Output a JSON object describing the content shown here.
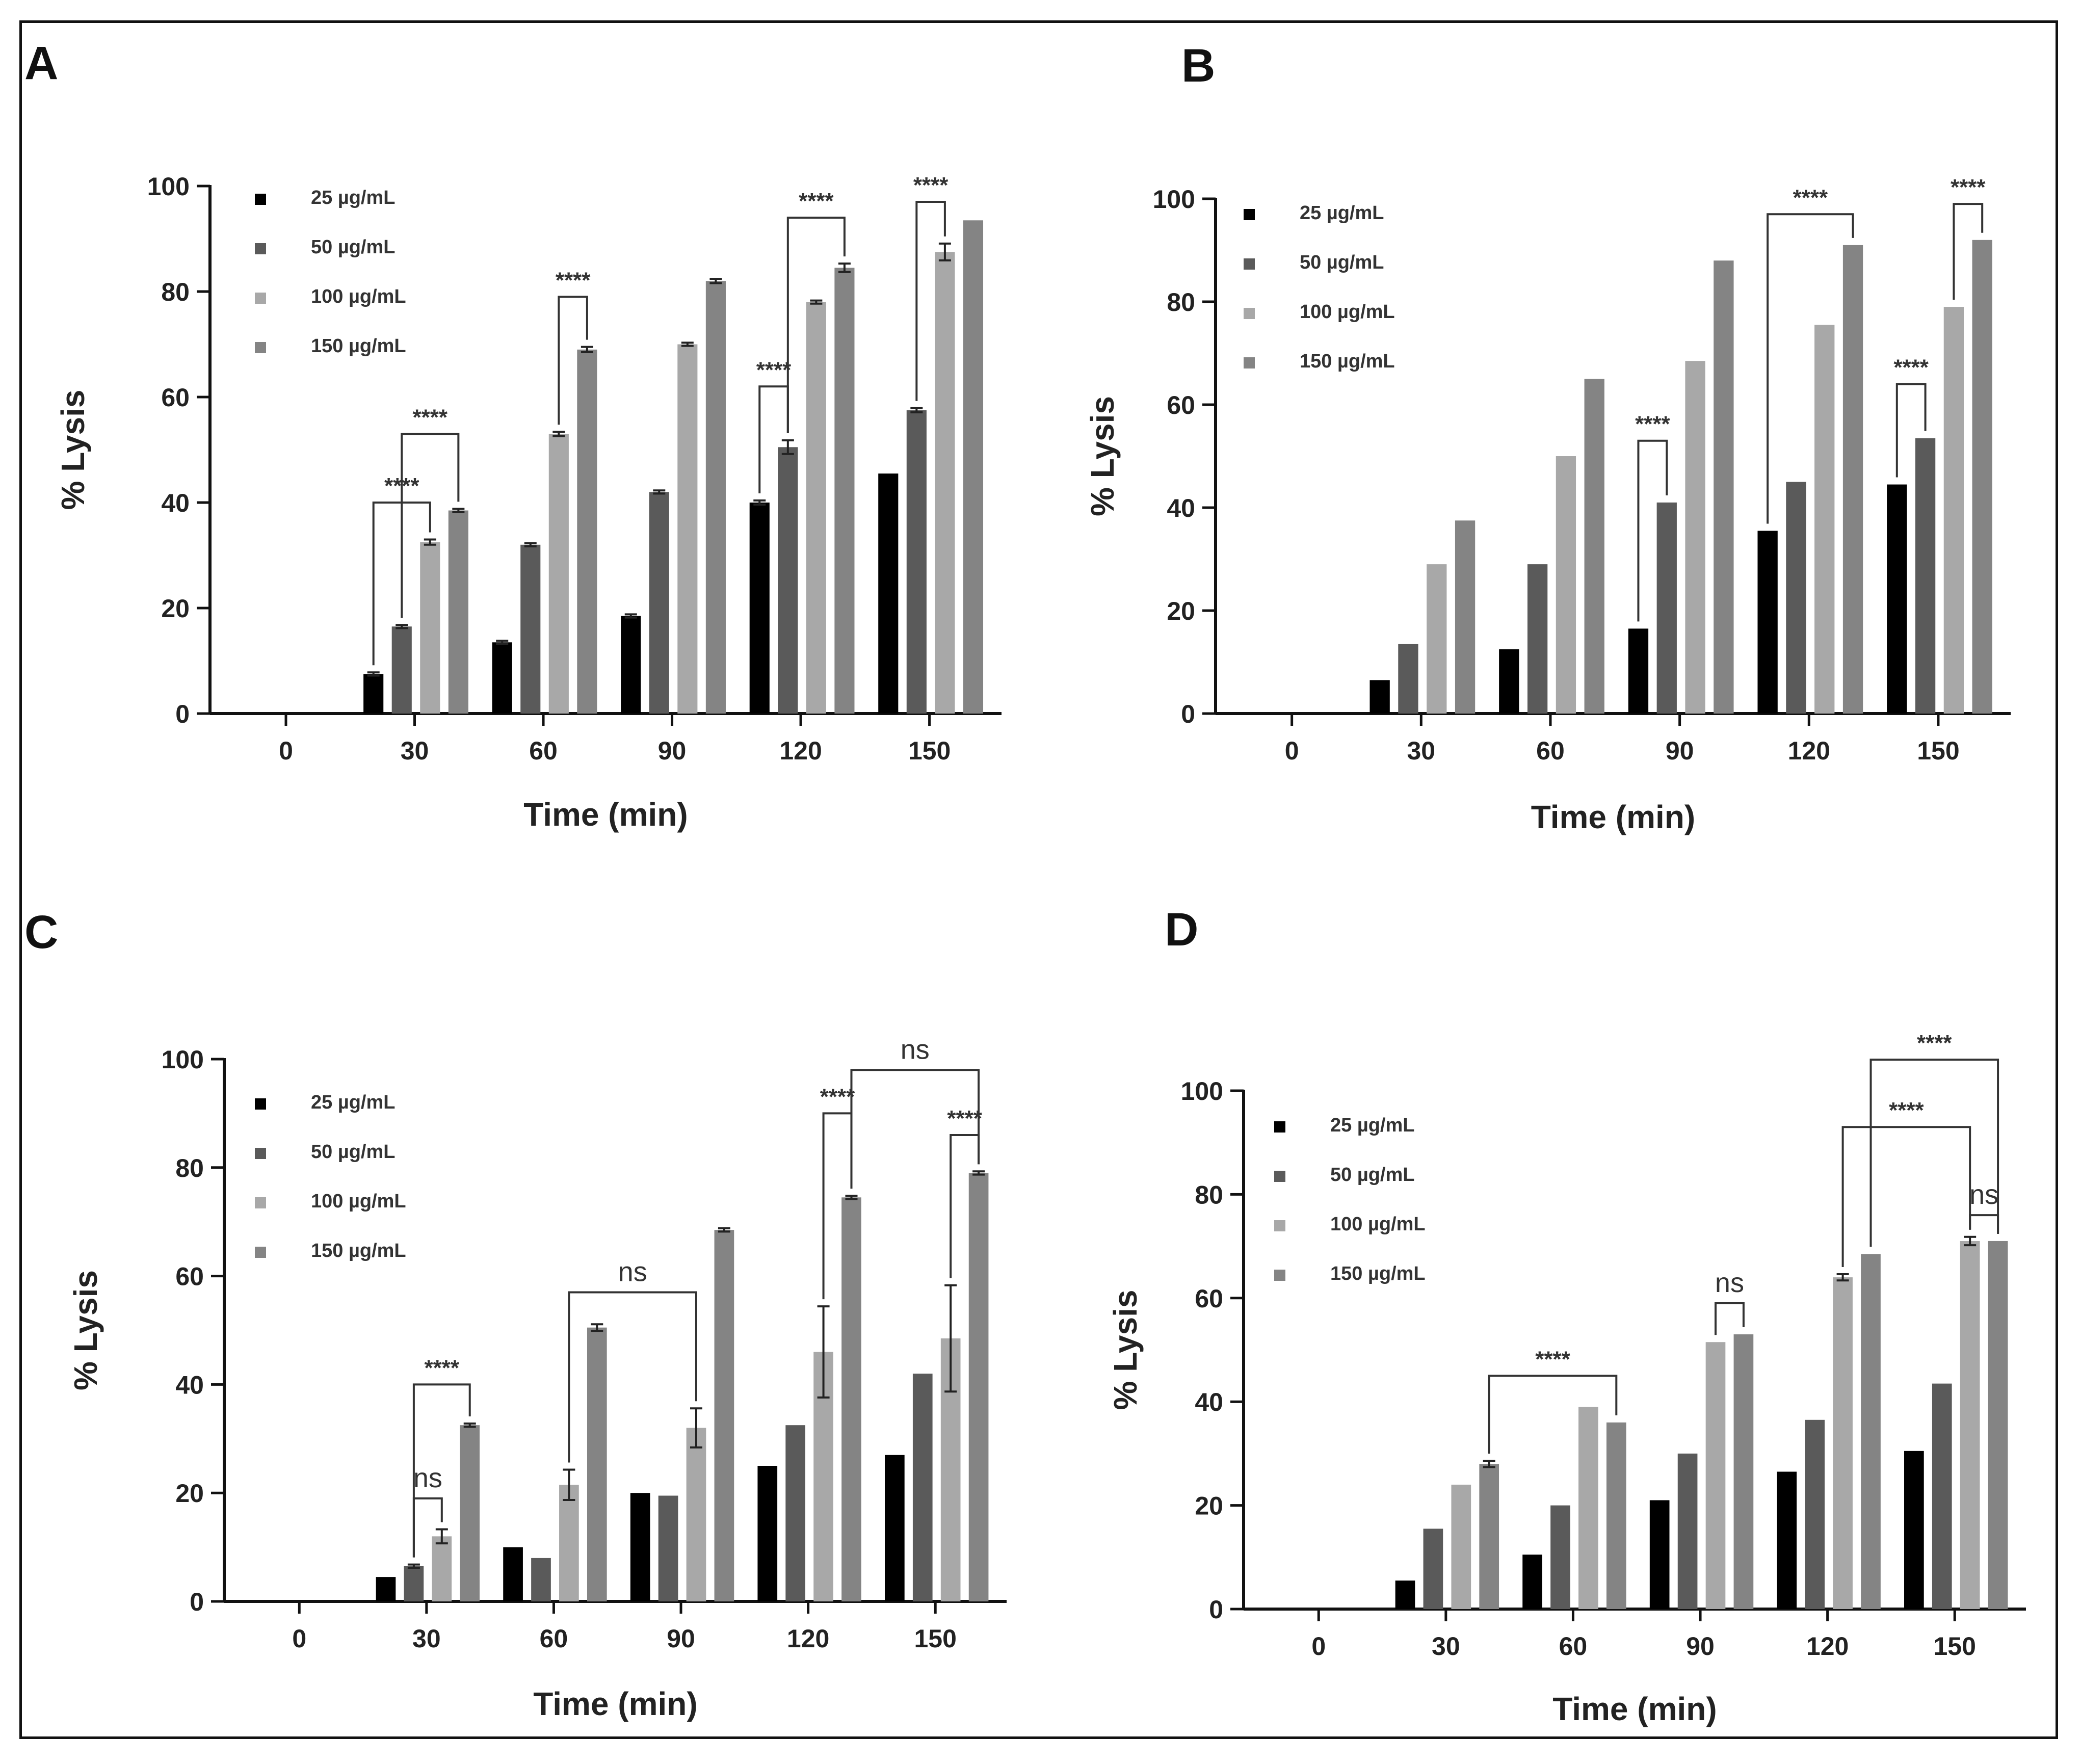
{
  "figure": {
    "panel_letters": [
      "A",
      "B",
      "C",
      "D"
    ]
  },
  "colors": {
    "c25": "#000000",
    "c50": "#5a5a5a",
    "c100": "#a8a8a8",
    "c150": "#848484",
    "axis": "#111111"
  },
  "chart_data": [
    {
      "panel": "A",
      "type": "bar",
      "xlabel": "Time (min)",
      "ylabel": "% Lysis",
      "categories": [
        "0",
        "30",
        "60",
        "90",
        "120",
        "150"
      ],
      "yticks": [
        0,
        20,
        40,
        60,
        80,
        100
      ],
      "ylim": [
        0,
        100
      ],
      "legend": [
        "25 µg/mL",
        "50 µg/mL",
        "100 µg/mL",
        "150 µg/mL"
      ],
      "series": [
        {
          "name": "25 µg/mL",
          "values": [
            0,
            7.5,
            13.5,
            18.5,
            40,
            45.5
          ],
          "errors": [
            0,
            0.3,
            0.3,
            0.3,
            0.4,
            0
          ]
        },
        {
          "name": "50 µg/mL",
          "values": [
            0,
            16.5,
            32,
            42,
            50.5,
            57.5
          ],
          "errors": [
            0,
            0.3,
            0.3,
            0.3,
            1.3,
            0.4
          ]
        },
        {
          "name": "100 µg/mL",
          "values": [
            0,
            32.5,
            53,
            70,
            78,
            87.5
          ],
          "errors": [
            0,
            0.5,
            0.4,
            0.3,
            0.3,
            1.6
          ]
        },
        {
          "name": "150 µg/mL",
          "values": [
            0,
            38.5,
            69,
            82,
            84.5,
            93.5
          ],
          "errors": [
            0,
            0.3,
            0.5,
            0.4,
            0.8,
            0
          ]
        }
      ],
      "comparisons": [
        {
          "from": [
            1,
            0
          ],
          "to": [
            1,
            2
          ],
          "label": "****",
          "height": 40
        },
        {
          "from": [
            1,
            1
          ],
          "to": [
            1,
            3
          ],
          "label": "****",
          "height": 53
        },
        {
          "from": [
            2,
            2
          ],
          "to": [
            2,
            3
          ],
          "label": "****",
          "height": 79
        },
        {
          "from": [
            4,
            0
          ],
          "to": [
            4,
            1
          ],
          "label": "****",
          "height": 62
        },
        {
          "from": [
            4,
            1
          ],
          "to": [
            4,
            3
          ],
          "label": "****",
          "height": 94
        },
        {
          "from": [
            5,
            1
          ],
          "to": [
            5,
            2
          ],
          "label": "****",
          "height": 97
        }
      ]
    },
    {
      "panel": "B",
      "type": "bar",
      "xlabel": "Time (min)",
      "ylabel": "% Lysis",
      "categories": [
        "0",
        "30",
        "60",
        "90",
        "120",
        "150"
      ],
      "yticks": [
        0,
        20,
        40,
        60,
        80,
        100
      ],
      "ylim": [
        0,
        100
      ],
      "legend": [
        "25 µg/mL",
        "50 µg/mL",
        "100 µg/mL",
        "150 µg/mL"
      ],
      "series": [
        {
          "name": "25 µg/mL",
          "values": [
            0,
            6.5,
            12.5,
            16.5,
            35.5,
            44.5
          ],
          "errors": [
            0,
            0,
            0,
            0,
            0,
            0
          ]
        },
        {
          "name": "50 µg/mL",
          "values": [
            0,
            13.5,
            29,
            41,
            45,
            53.5
          ],
          "errors": [
            0,
            0,
            0,
            0,
            0,
            0
          ]
        },
        {
          "name": "100 µg/mL",
          "values": [
            0,
            29,
            50,
            68.5,
            75.5,
            79
          ],
          "errors": [
            0,
            0,
            0,
            0,
            0,
            0
          ]
        },
        {
          "name": "150 µg/mL",
          "values": [
            0,
            37.5,
            65,
            88,
            91,
            92
          ],
          "errors": [
            0,
            0,
            0,
            0,
            0,
            0
          ]
        }
      ],
      "comparisons": [
        {
          "from": [
            3,
            0
          ],
          "to": [
            3,
            1
          ],
          "label": "****",
          "height": 53
        },
        {
          "from": [
            4,
            0
          ],
          "to": [
            4,
            3
          ],
          "label": "****",
          "height": 97
        },
        {
          "from": [
            5,
            0
          ],
          "to": [
            5,
            1
          ],
          "label": "****",
          "height": 64
        },
        {
          "from": [
            5,
            2
          ],
          "to": [
            5,
            3
          ],
          "label": "****",
          "height": 99
        }
      ]
    },
    {
      "panel": "C",
      "type": "bar",
      "xlabel": "Time (min)",
      "ylabel": "% Lysis",
      "categories": [
        "0",
        "30",
        "60",
        "90",
        "120",
        "150"
      ],
      "yticks": [
        0,
        20,
        40,
        60,
        80,
        100
      ],
      "ylim": [
        0,
        100
      ],
      "legend": [
        "25 µg/mL",
        "50 µg/mL",
        "100 µg/mL",
        "150 µg/mL"
      ],
      "series": [
        {
          "name": "25 µg/mL",
          "values": [
            0,
            4.5,
            10,
            20,
            25,
            27
          ],
          "errors": [
            0,
            0,
            0,
            0,
            0,
            0
          ]
        },
        {
          "name": "50 µg/mL",
          "values": [
            0,
            6.5,
            8,
            19.5,
            32.5,
            42
          ],
          "errors": [
            0,
            0.3,
            0,
            0,
            0,
            0
          ]
        },
        {
          "name": "100 µg/mL",
          "values": [
            0,
            12,
            21.5,
            32,
            46,
            48.5
          ],
          "errors": [
            0,
            1.3,
            2.8,
            3.6,
            8.4,
            9.8
          ]
        },
        {
          "name": "150 µg/mL",
          "values": [
            0,
            32.5,
            50.5,
            68.5,
            74.5,
            79
          ],
          "errors": [
            0,
            0.3,
            0.6,
            0.3,
            0.3,
            0.3
          ]
        }
      ],
      "comparisons": [
        {
          "from": [
            1,
            1
          ],
          "to": [
            1,
            2
          ],
          "label": "ns",
          "height": 19
        },
        {
          "from": [
            1,
            1
          ],
          "to": [
            1,
            3
          ],
          "label": "****",
          "height": 40
        },
        {
          "from": [
            2,
            2
          ],
          "to": [
            3,
            2
          ],
          "label": "ns",
          "height": 57
        },
        {
          "from": [
            4,
            2
          ],
          "to": [
            4,
            3
          ],
          "label": "****",
          "height": 90
        },
        {
          "from": [
            4,
            3
          ],
          "to": [
            5,
            3
          ],
          "label": "ns",
          "height": 98
        },
        {
          "from": [
            5,
            2
          ],
          "to": [
            5,
            3
          ],
          "label": "****",
          "height": 86
        }
      ]
    },
    {
      "panel": "D",
      "type": "bar",
      "xlabel": "Time (min)",
      "ylabel": "% Lysis",
      "categories": [
        "0",
        "30",
        "60",
        "90",
        "120",
        "150"
      ],
      "yticks": [
        0,
        20,
        40,
        60,
        80,
        100
      ],
      "ylim": [
        0,
        100
      ],
      "legend": [
        "25 µg/mL",
        "50 µg/mL",
        "100 µg/mL",
        "150 µg/mL"
      ],
      "series": [
        {
          "name": "25 µg/mL",
          "values": [
            0,
            5.5,
            10.5,
            21,
            26.5,
            30.5
          ],
          "errors": [
            0,
            0,
            0,
            0,
            0,
            0
          ]
        },
        {
          "name": "50 µg/mL",
          "values": [
            0,
            15.5,
            20,
            30,
            36.5,
            43.5
          ],
          "errors": [
            0,
            0,
            0,
            0,
            0,
            0
          ]
        },
        {
          "name": "100 µg/mL",
          "values": [
            0,
            24,
            39,
            51.5,
            64,
            71
          ],
          "errors": [
            0,
            0,
            0,
            0,
            0.6,
            0.8
          ]
        },
        {
          "name": "150 µg/mL",
          "values": [
            0,
            28,
            36,
            53,
            68.5,
            71
          ],
          "errors": [
            0,
            0.6,
            0,
            0,
            0,
            0
          ]
        }
      ],
      "comparisons": [
        {
          "from": [
            1,
            3
          ],
          "to": [
            2,
            3
          ],
          "label": "****",
          "height": 45
        },
        {
          "from": [
            3,
            2
          ],
          "to": [
            3,
            3
          ],
          "label": "ns",
          "height": 59
        },
        {
          "from": [
            4,
            2
          ],
          "to": [
            5,
            2
          ],
          "label": "****",
          "height": 93
        },
        {
          "from": [
            4,
            3
          ],
          "to": [
            5,
            3
          ],
          "label": "****",
          "height": 106
        },
        {
          "from": [
            5,
            2
          ],
          "to": [
            5,
            3
          ],
          "label": "ns",
          "height": 76
        }
      ]
    }
  ]
}
